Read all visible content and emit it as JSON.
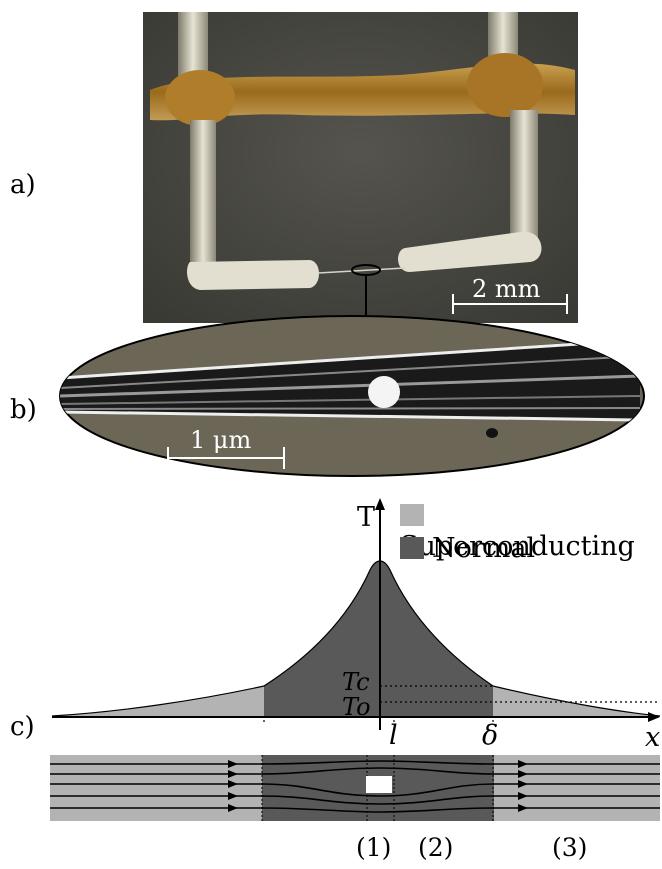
{
  "panel_labels": {
    "a": "a)",
    "b": "b)",
    "c": "c)"
  },
  "photo": {
    "scale_bar_label": "2 mm"
  },
  "sem": {
    "scale_bar_label": "1 μm"
  },
  "diagram": {
    "y_axis_label": "T",
    "x_axis_label": "x",
    "legend": [
      {
        "label": "Superconducting",
        "color": "#b3b3b3"
      },
      {
        "label": "Normal",
        "color": "#595959"
      }
    ],
    "level_labels": {
      "tc": "Tc",
      "to": "To"
    },
    "x_marks": {
      "l": "l",
      "delta": "δ"
    },
    "regions": [
      "(1)",
      "(2)",
      "(3)"
    ]
  },
  "colors": {
    "superconducting": "#b3b3b3",
    "normal": "#595959",
    "photo_bg": "#4a4a44",
    "sem_bg": "#6b6656"
  }
}
